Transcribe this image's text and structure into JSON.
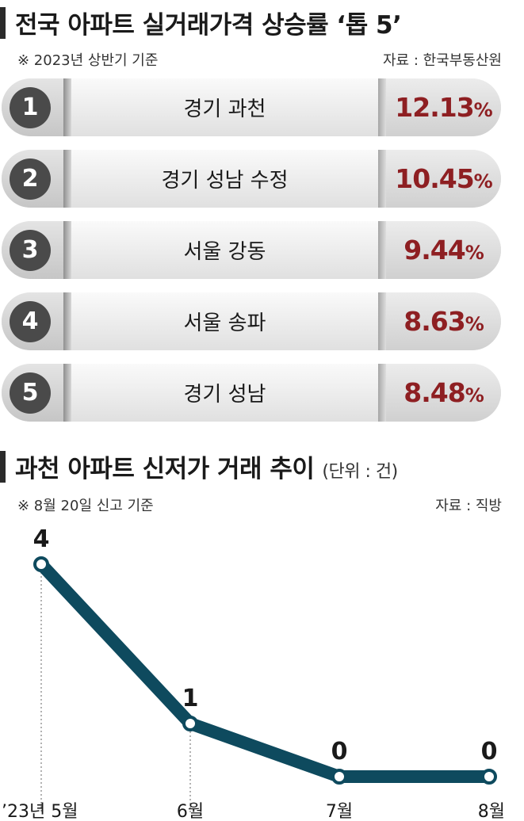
{
  "ranking": {
    "title": "전국 아파트 실거래가격 상승률 ‘톱 5’",
    "note": "※ 2023년 상반기 기준",
    "source": "자료 : 한국부동산원",
    "items": [
      {
        "rank": "1",
        "region": "경기 과천",
        "value": "12.13",
        "unit": "%"
      },
      {
        "rank": "2",
        "region": "경기 성남 수정",
        "value": "10.45",
        "unit": "%"
      },
      {
        "rank": "3",
        "region": "서울 강동",
        "value": "9.44",
        "unit": "%"
      },
      {
        "rank": "4",
        "region": "서울 송파",
        "value": "8.63",
        "unit": "%"
      },
      {
        "rank": "5",
        "region": "경기 성남",
        "value": "8.48",
        "unit": "%"
      }
    ]
  },
  "trend": {
    "title": "과천 아파트 신저가 거래 추이",
    "unit": "(단위 : 건)",
    "note": "※ 8월 20일 신고 기준",
    "source": "자료 : 직방"
  },
  "colors": {
    "accent_red": "#8e1f22",
    "line": "#0e4a5e",
    "circle": "#4a4a4a"
  },
  "chart_data": [
    {
      "type": "table",
      "title": "전국 아파트 실거래가격 상승률 ‘톱 5’",
      "categories": [
        "경기 과천",
        "경기 성남 수정",
        "서울 강동",
        "서울 송파",
        "경기 성남"
      ],
      "values": [
        12.13,
        10.45,
        9.44,
        8.63,
        8.48
      ]
    },
    {
      "type": "line",
      "title": "과천 아파트 신저가 거래 추이",
      "categories": [
        "’23년 5월",
        "6월",
        "7월",
        "8월"
      ],
      "values": [
        4,
        1,
        0,
        0
      ],
      "ylim": [
        0,
        4
      ],
      "grid": false
    }
  ]
}
